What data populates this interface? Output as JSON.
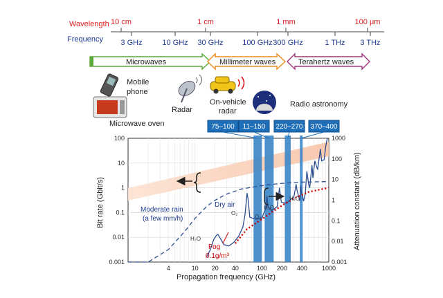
{
  "header": {
    "wavelength_label": "Wavelength",
    "frequency_label": "Frequency",
    "wavelength_ticks": [
      "10 cm",
      "1 cm",
      "1 mm",
      "100 μm"
    ],
    "frequency_ticks": [
      "3 GHz",
      "10 GHz",
      "30 GHz",
      "100 GHz",
      "300 GHz",
      "1 THz",
      "3 THz"
    ]
  },
  "bands": {
    "microwaves": "Microwaves",
    "millimeter": "Millimeter waves",
    "terahertz": "Terahertz waves"
  },
  "applications": {
    "mobile_phone_line1": "Mobile",
    "mobile_phone_line2": "phone",
    "microwave_oven": "Microwave oven",
    "radar": "Radar",
    "vehicle_radar_line1": "On-vehicle",
    "vehicle_radar_line2": "radar",
    "radio_astronomy": "Radio astronomy"
  },
  "astronomy_bands": [
    "75–100",
    "11–150",
    "220–270",
    "370–400"
  ],
  "chart_data": {
    "type": "line",
    "xlabel": "Propagation frequency (GHz)",
    "ylabel_left": "Bit rate (Gbit/s)",
    "ylabel_right": "Attenuation constant (dB/km)",
    "x_scale": "log",
    "xlim": [
      1,
      1000
    ],
    "x_ticks": [
      "4",
      "10",
      "20",
      "40",
      "100",
      "200",
      "400",
      "1000"
    ],
    "ylim_left": [
      0.001,
      100
    ],
    "y_ticks_left": [
      "100",
      "10",
      "1",
      "0.1",
      "0.01",
      "0.001"
    ],
    "ylim_right": [
      0.001,
      1000
    ],
    "y_ticks_right": [
      "1000",
      "100",
      "10",
      "1",
      "0.1",
      "0.01",
      "0.001"
    ],
    "grid": true,
    "annotations": {
      "moderate_rain_line1": "Moderate rain",
      "moderate_rain_line2": "(a few mm/h)",
      "dry_air": "Dry air",
      "h2o_low": "H₂O",
      "o2_mid": "O₂",
      "o2_high": "O₂",
      "h2o_mid": "H₂O",
      "h2o_high": "H₂O",
      "fog_line1": "Fog",
      "fog_line2": "0.1g/m³"
    },
    "series": [
      {
        "color": "#2b4d8f",
        "style": "solid",
        "points": [
          [
            15,
            0.0018
          ],
          [
            17,
            0.004
          ],
          [
            19,
            0.012
          ],
          [
            21,
            0.02
          ],
          [
            22,
            0.022
          ],
          [
            24,
            0.014
          ],
          [
            27,
            0.007
          ],
          [
            32,
            0.006
          ],
          [
            38,
            0.009
          ],
          [
            45,
            0.018
          ],
          [
            52,
            0.05
          ],
          [
            56,
            0.2
          ],
          [
            60,
            2.2
          ],
          [
            62,
            1.2
          ],
          [
            66,
            0.15
          ],
          [
            80,
            0.12
          ],
          [
            100,
            0.13
          ],
          [
            115,
            0.45
          ],
          [
            119,
            1.6
          ],
          [
            123,
            0.5
          ],
          [
            140,
            0.3
          ],
          [
            170,
            0.5
          ],
          [
            183,
            4
          ],
          [
            195,
            0.8
          ],
          [
            230,
            0.7
          ],
          [
            300,
            1.4
          ],
          [
            325,
            6
          ],
          [
            335,
            3
          ],
          [
            370,
            0.9
          ],
          [
            380,
            5
          ],
          [
            390,
            2.5
          ],
          [
            420,
            0.9
          ],
          [
            445,
            2
          ],
          [
            470,
            25
          ],
          [
            500,
            6
          ],
          [
            520,
            4
          ],
          [
            560,
            50
          ],
          [
            580,
            12
          ],
          [
            620,
            80
          ],
          [
            680,
            30
          ],
          [
            750,
            300
          ],
          [
            780,
            80
          ],
          [
            850,
            90
          ],
          [
            900,
            400
          ],
          [
            950,
            1000
          ]
        ]
      },
      {
        "color": "#2b4d8f",
        "style": "dashed",
        "points": [
          [
            1,
            0.0004
          ],
          [
            2,
            0.0009
          ],
          [
            4,
            0.004
          ],
          [
            7,
            0.03
          ],
          [
            10,
            0.13
          ],
          [
            15,
            0.5
          ],
          [
            20,
            1
          ],
          [
            30,
            2
          ],
          [
            50,
            3.5
          ],
          [
            80,
            4.5
          ],
          [
            120,
            5.5
          ],
          [
            200,
            6.5
          ],
          [
            400,
            7.5
          ],
          [
            1000,
            8
          ]
        ]
      },
      {
        "color": "#cc0000",
        "style": "dotted",
        "points": [
          [
            40,
            0.008
          ],
          [
            60,
            0.04
          ],
          [
            100,
            0.12
          ],
          [
            150,
            0.3
          ],
          [
            200,
            0.55
          ],
          [
            300,
            1.2
          ],
          [
            500,
            2.5
          ],
          [
            1000,
            4
          ]
        ]
      }
    ]
  }
}
